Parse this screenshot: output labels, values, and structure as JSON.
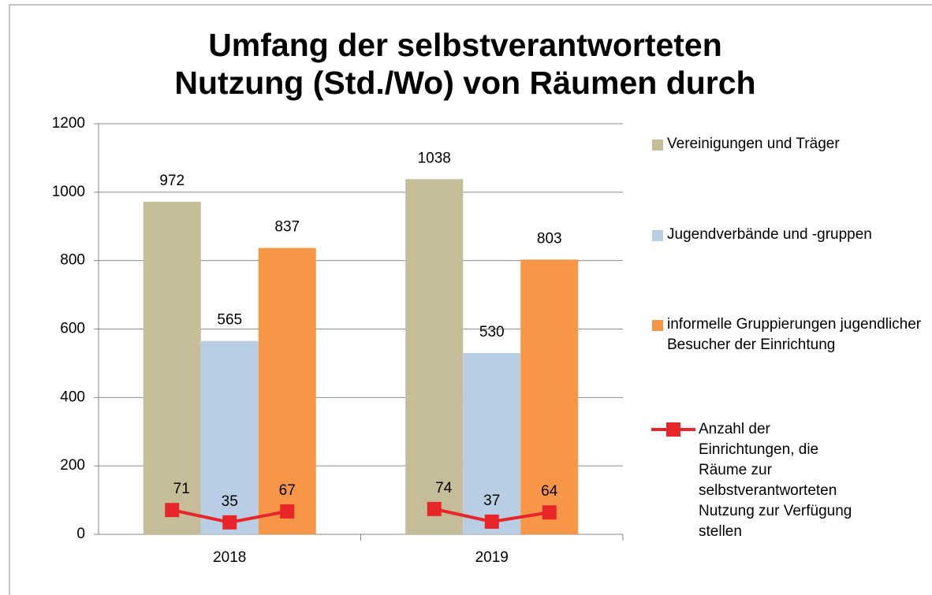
{
  "chart_data": {
    "type": "bar",
    "title": [
      "Umfang der selbstverantworteten",
      "Nutzung (Std./Wo) von Räumen durch"
    ],
    "categories": [
      "2018",
      "2019"
    ],
    "ylim": [
      0,
      1200
    ],
    "yticks": [
      0,
      200,
      400,
      600,
      800,
      1000,
      1200
    ],
    "grid": true,
    "series": [
      {
        "name": "Vereinigungen und Träger",
        "color": "#c4bd97",
        "values": [
          972,
          1038
        ]
      },
      {
        "name": "Jugendverbände und -gruppen",
        "color": "#b9cde5",
        "values": [
          565,
          530
        ]
      },
      {
        "name": "informelle Gruppierungen jugendlicher Besucher der Einrichtung",
        "color": "#f79646",
        "values": [
          837,
          803
        ]
      },
      {
        "name": "Anzahl der Einrichtungen, die Räume zur selbstverantworteten Nutzung zur Verfügung stellen",
        "color": "#e8262a",
        "type": "line",
        "values": [
          [
            71,
            35,
            67
          ],
          [
            74,
            37,
            64
          ]
        ]
      }
    ]
  }
}
